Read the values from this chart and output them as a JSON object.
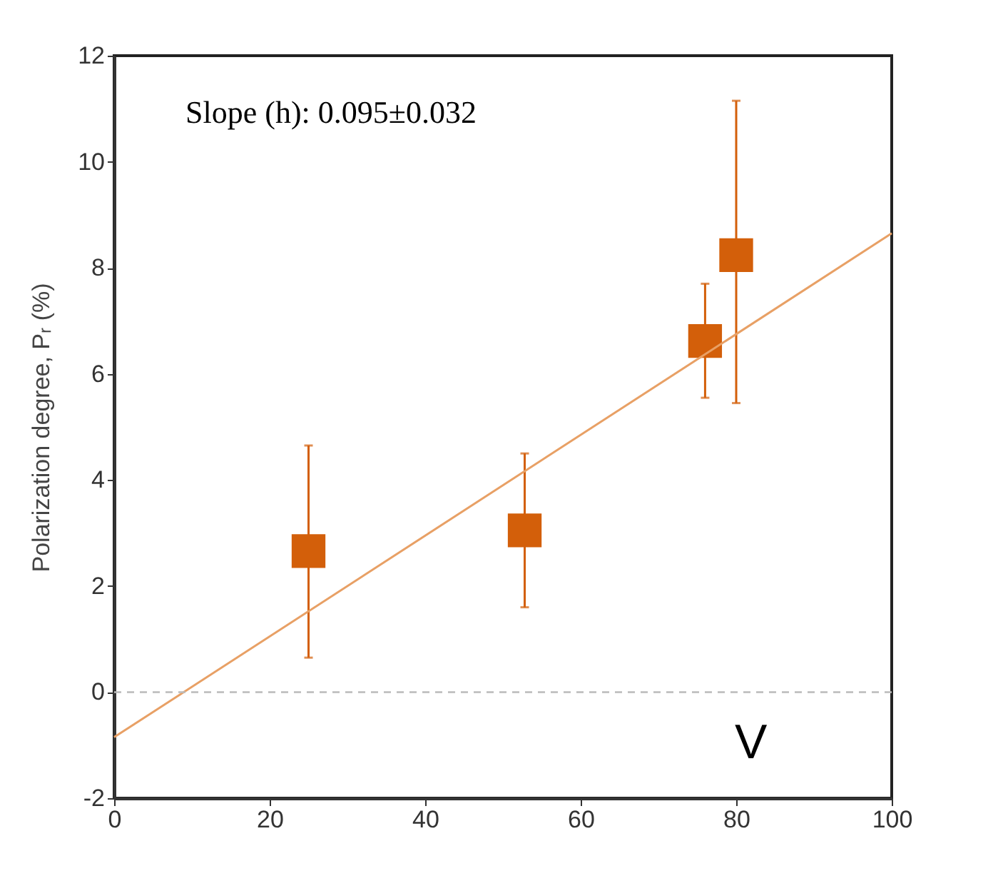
{
  "chart_data": {
    "type": "scatter",
    "ylabel": "Polarization degree, Pᵣ (%)",
    "annotations": [
      "Slope (h): 0.095±0.032",
      "V"
    ],
    "xlim": [
      0,
      100
    ],
    "xticks": [
      0,
      20,
      40,
      60,
      80,
      100
    ],
    "ylim": [
      -2,
      12
    ],
    "yticks": [
      -2,
      0,
      2,
      4,
      6,
      8,
      10,
      12
    ],
    "grid": false,
    "series": [
      {
        "color": "#d35f0a",
        "marker": "square",
        "x": [
          25,
          52.8,
          76,
          80
        ],
        "values": [
          2.66,
          3.05,
          6.62,
          8.24
        ],
        "errors": [
          [
            0.65,
            4.65
          ],
          [
            1.6,
            4.5
          ],
          [
            5.55,
            7.7
          ],
          [
            5.45,
            11.15
          ]
        ]
      },
      {
        "type": "line",
        "color": "#e8a065",
        "x": [
          0,
          100
        ],
        "values": [
          -0.85,
          8.65
        ],
        "line_style": "solid"
      }
    ],
    "ref_lines": [
      {
        "axis": "y",
        "value": 0,
        "color": "#bbbbbb",
        "line_style": "dashed"
      }
    ]
  }
}
